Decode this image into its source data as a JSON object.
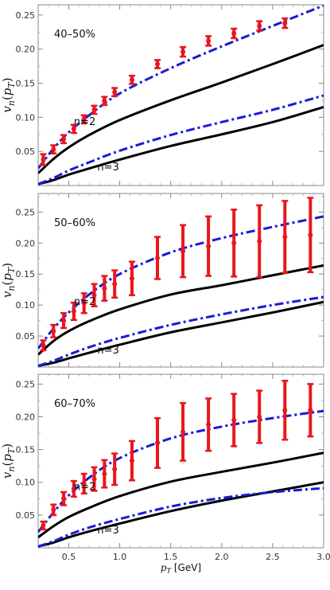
{
  "chart_data": {
    "type": "line",
    "shared_x": {
      "label": "p_T [GeV]",
      "label_base": "p",
      "label_sub": "T",
      "label_unit": " [GeV]",
      "lim": [
        0.2,
        3.0
      ],
      "ticks": [
        0.5,
        1.0,
        1.5,
        2.0,
        2.5,
        3.0
      ],
      "tick_labels": [
        "0.5",
        "1.0",
        "1.5",
        "2.0",
        "2.5",
        "3.0"
      ]
    },
    "ylabel": "v_n(p_T)",
    "ylabel_parts": {
      "v": "v",
      "n": "n",
      "open": "(",
      "p": "p",
      "T": "T",
      "close": ")"
    },
    "colors": {
      "model_solid": "#000000",
      "model_dashdot": "#1a1ad6",
      "data": "#e8171d"
    },
    "panels": [
      {
        "centrality": "40–50%",
        "ylim": [
          0,
          0.265
        ],
        "yticks": [
          0.05,
          0.1,
          0.15,
          0.2,
          0.25
        ],
        "ytick_labels": [
          "0.05",
          "0.10",
          "0.15",
          "0.20",
          "0.25"
        ],
        "annotations": [
          {
            "text": "n=2",
            "x": 0.55,
            "y": 0.089
          },
          {
            "text": "n=3",
            "x": 0.78,
            "y": 0.022
          }
        ],
        "series": [
          {
            "name": "n=2 solid",
            "style": "solid",
            "x": [
              0.2,
              0.35,
              0.5,
              0.7,
              1.0,
              1.5,
              2.0,
              2.5,
              3.0
            ],
            "y": [
              0.018,
              0.039,
              0.056,
              0.074,
              0.096,
              0.125,
              0.151,
              0.178,
              0.206
            ]
          },
          {
            "name": "n=2 dash-dot",
            "style": "dashdot",
            "x": [
              0.2,
              0.35,
              0.5,
              0.7,
              1.0,
              1.5,
              2.0,
              2.5,
              3.0
            ],
            "y": [
              0.025,
              0.054,
              0.078,
              0.103,
              0.135,
              0.172,
              0.204,
              0.234,
              0.264
            ]
          },
          {
            "name": "n=3 solid",
            "style": "solid",
            "x": [
              0.2,
              0.35,
              0.5,
              0.7,
              1.0,
              1.5,
              2.0,
              2.5,
              3.0
            ],
            "y": [
              0.002,
              0.008,
              0.016,
              0.025,
              0.038,
              0.058,
              0.075,
              0.093,
              0.115
            ]
          },
          {
            "name": "n=3 dash-dot",
            "style": "dashdot",
            "x": [
              0.2,
              0.35,
              0.5,
              0.7,
              1.0,
              1.5,
              2.0,
              2.5,
              3.0
            ],
            "y": [
              0.002,
              0.011,
              0.022,
              0.034,
              0.051,
              0.074,
              0.093,
              0.111,
              0.132
            ]
          }
        ],
        "data_points": {
          "x": [
            0.25,
            0.35,
            0.45,
            0.55,
            0.65,
            0.75,
            0.85,
            0.95,
            1.12,
            1.37,
            1.62,
            1.87,
            2.12,
            2.37,
            2.62
          ],
          "y": [
            0.038,
            0.053,
            0.068,
            0.083,
            0.097,
            0.111,
            0.124,
            0.137,
            0.155,
            0.178,
            0.196,
            0.212,
            0.223,
            0.234,
            0.238
          ],
          "err": [
            0.008,
            0.006,
            0.006,
            0.006,
            0.006,
            0.006,
            0.006,
            0.006,
            0.006,
            0.006,
            0.007,
            0.007,
            0.007,
            0.007,
            0.007
          ]
        }
      },
      {
        "centrality": "50–60%",
        "ylim": [
          0,
          0.28
        ],
        "yticks": [
          0.05,
          0.1,
          0.15,
          0.2,
          0.25
        ],
        "ytick_labels": [
          "0.05",
          "0.10",
          "0.15",
          "0.20",
          "0.25"
        ],
        "annotations": [
          {
            "text": "n=2",
            "x": 0.55,
            "y": 0.1
          },
          {
            "text": "n=3",
            "x": 0.78,
            "y": 0.022
          }
        ],
        "series": [
          {
            "name": "n=2 solid",
            "style": "solid",
            "x": [
              0.2,
              0.35,
              0.5,
              0.7,
              1.0,
              1.5,
              2.0,
              2.5,
              3.0
            ],
            "y": [
              0.02,
              0.042,
              0.058,
              0.074,
              0.093,
              0.117,
              0.132,
              0.148,
              0.164
            ]
          },
          {
            "name": "n=2 dash-dot",
            "style": "dashdot",
            "x": [
              0.2,
              0.35,
              0.5,
              0.7,
              1.0,
              1.5,
              2.0,
              2.5,
              3.0
            ],
            "y": [
              0.03,
              0.062,
              0.088,
              0.117,
              0.15,
              0.185,
              0.208,
              0.226,
              0.243
            ]
          },
          {
            "name": "n=3 solid",
            "style": "solid",
            "x": [
              0.2,
              0.35,
              0.5,
              0.7,
              1.0,
              1.5,
              2.0,
              2.5,
              3.0
            ],
            "y": [
              0.002,
              0.007,
              0.014,
              0.023,
              0.036,
              0.056,
              0.072,
              0.088,
              0.105
            ]
          },
          {
            "name": "n=3 dash-dot",
            "style": "dashdot",
            "x": [
              0.2,
              0.35,
              0.5,
              0.7,
              1.0,
              1.5,
              2.0,
              2.5,
              3.0
            ],
            "y": [
              0.002,
              0.01,
              0.02,
              0.032,
              0.047,
              0.068,
              0.085,
              0.1,
              0.113
            ]
          }
        ],
        "data_points": {
          "x": [
            0.25,
            0.35,
            0.45,
            0.55,
            0.65,
            0.75,
            0.85,
            0.95,
            1.12,
            1.37,
            1.62,
            1.87,
            2.12,
            2.37,
            2.62,
            2.87
          ],
          "y": [
            0.035,
            0.058,
            0.075,
            0.09,
            0.103,
            0.116,
            0.127,
            0.134,
            0.143,
            0.176,
            0.187,
            0.195,
            0.2,
            0.203,
            0.21,
            0.213
          ],
          "err": [
            0.008,
            0.01,
            0.012,
            0.014,
            0.016,
            0.018,
            0.02,
            0.022,
            0.027,
            0.034,
            0.042,
            0.048,
            0.054,
            0.058,
            0.058,
            0.06
          ]
        }
      },
      {
        "centrality": "60–70%",
        "ylim": [
          0,
          0.265
        ],
        "yticks": [
          0.05,
          0.1,
          0.15,
          0.2,
          0.25
        ],
        "ytick_labels": [
          "0.05",
          "0.10",
          "0.15",
          "0.20",
          "0.25"
        ],
        "annotations": [
          {
            "text": "n=2",
            "x": 0.55,
            "y": 0.088
          },
          {
            "text": "n=3",
            "x": 0.78,
            "y": 0.022
          }
        ],
        "series": [
          {
            "name": "n=2 solid",
            "style": "solid",
            "x": [
              0.2,
              0.35,
              0.5,
              0.7,
              1.0,
              1.5,
              2.0,
              2.5,
              3.0
            ],
            "y": [
              0.016,
              0.033,
              0.047,
              0.061,
              0.079,
              0.101,
              0.116,
              0.13,
              0.145
            ]
          },
          {
            "name": "n=2 dash-dot",
            "style": "dashdot",
            "x": [
              0.2,
              0.35,
              0.5,
              0.7,
              1.0,
              1.5,
              2.0,
              2.5,
              3.0
            ],
            "y": [
              0.024,
              0.054,
              0.08,
              0.107,
              0.137,
              0.167,
              0.185,
              0.198,
              0.209
            ]
          },
          {
            "name": "n=3 solid",
            "style": "solid",
            "x": [
              0.2,
              0.35,
              0.5,
              0.7,
              1.0,
              1.5,
              2.0,
              2.5,
              3.0
            ],
            "y": [
              0.002,
              0.008,
              0.016,
              0.025,
              0.037,
              0.056,
              0.072,
              0.086,
              0.1
            ]
          },
          {
            "name": "n=3 dash-dot",
            "style": "dashdot",
            "x": [
              0.2,
              0.35,
              0.5,
              0.7,
              1.0,
              1.5,
              2.0,
              2.5,
              3.0
            ],
            "y": [
              0.002,
              0.01,
              0.02,
              0.031,
              0.044,
              0.063,
              0.076,
              0.085,
              0.091
            ]
          }
        ],
        "data_points": {
          "x": [
            0.25,
            0.35,
            0.45,
            0.55,
            0.65,
            0.75,
            0.85,
            0.95,
            1.12,
            1.37,
            1.62,
            1.87,
            2.12,
            2.37,
            2.62,
            2.87
          ],
          "y": [
            0.034,
            0.058,
            0.075,
            0.09,
            0.098,
            0.105,
            0.113,
            0.12,
            0.133,
            0.16,
            0.177,
            0.188,
            0.195,
            0.2,
            0.21,
            0.21
          ],
          "err": [
            0.006,
            0.008,
            0.01,
            0.012,
            0.015,
            0.018,
            0.021,
            0.024,
            0.03,
            0.038,
            0.044,
            0.04,
            0.04,
            0.04,
            0.045,
            0.04
          ]
        }
      }
    ]
  }
}
